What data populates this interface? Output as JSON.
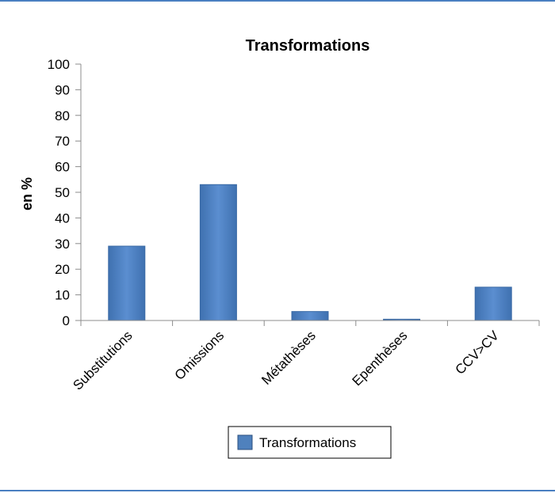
{
  "chart_data": {
    "type": "bar",
    "title": "Transformations",
    "ylabel": "en %",
    "xlabel": "",
    "categories": [
      "Substitutions",
      "Omissions",
      "Métathèses",
      "Epenthèses",
      "CCV>CV"
    ],
    "series": [
      {
        "name": "Transformations",
        "values": [
          29,
          53,
          3.5,
          0.5,
          13
        ]
      }
    ],
    "ylim": [
      0,
      100
    ],
    "yticks": [
      0,
      10,
      20,
      30,
      40,
      50,
      60,
      70,
      80,
      90,
      100
    ],
    "grid": false,
    "legend_position": "bottom",
    "colors": {
      "bar": "#4f81bd",
      "bar_edge": "#3a6aa5",
      "frame": "#4a7fc1"
    }
  }
}
